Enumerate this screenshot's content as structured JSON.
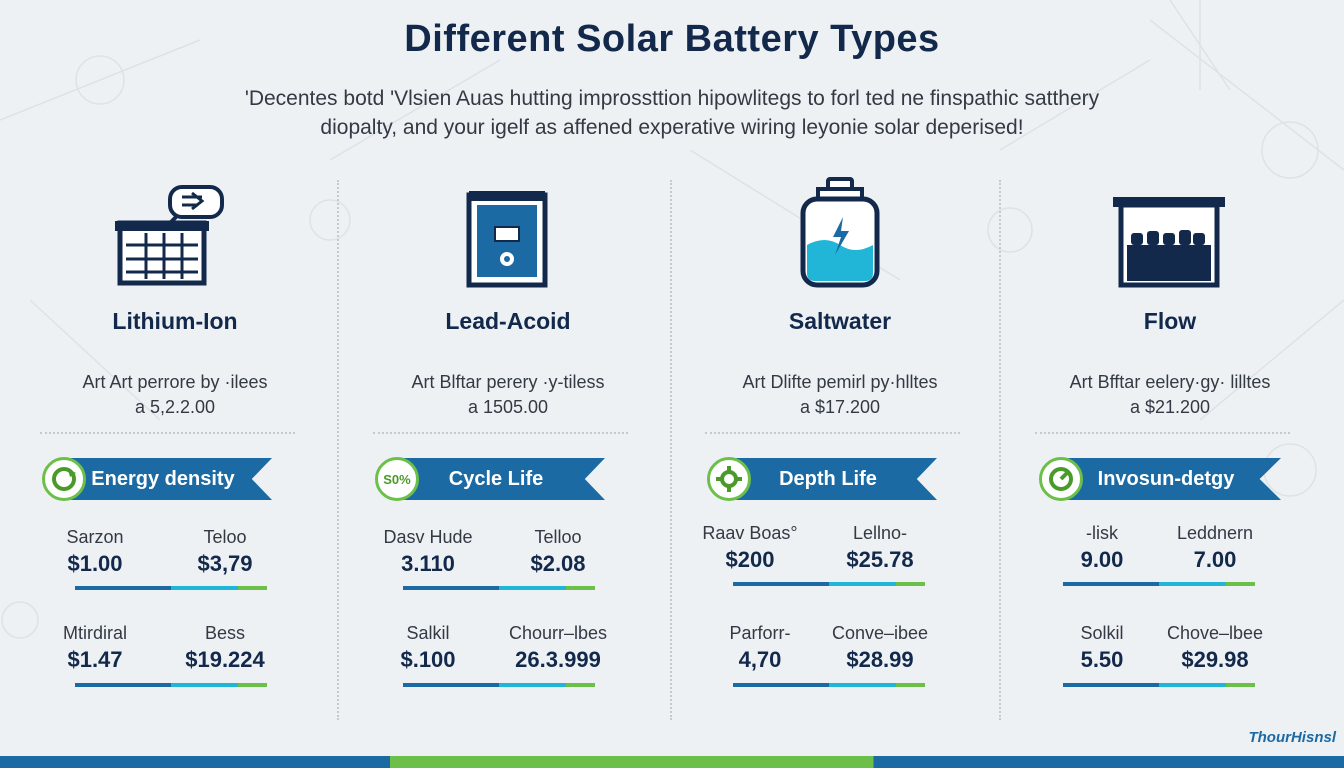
{
  "title": "Different Solar Battery Types",
  "subtitle_line1": "'Decentes botd 'Vlsien Auas hutting improssttion hipowlitegs to forl ted ne finspathic satthery",
  "subtitle_line2": "diopalty, and your igelf as affened experative wiring leyonie solar deperised!",
  "brand": "ThourHisnsl",
  "colors": {
    "navy": "#13294b",
    "blue": "#1c6aa3",
    "cyan": "#21b5d8",
    "green": "#6cc04a"
  },
  "columns": [
    {
      "icon": "lithium-battery-icon",
      "name": "Lithium-Ion",
      "desc1": "Art Art perrore by ·ilees",
      "desc2": "a 5,2.2.00",
      "ribbon_label": "Energy density",
      "ribbon_badge": "",
      "stats": [
        {
          "label": "Sarzon",
          "value": "$1.00"
        },
        {
          "label": "Teloo",
          "value": "$3,79"
        },
        {
          "label": "Mtirdiral",
          "value": "$1.47"
        },
        {
          "label": "Bess",
          "value": "$19.224"
        }
      ]
    },
    {
      "icon": "lead-acid-battery-icon",
      "name": "Lead-Acoid",
      "desc1": "Art Blftar perery ·y-tiless",
      "desc2": "a 1505.00",
      "ribbon_label": "Cycle Life",
      "ribbon_badge": "S0%",
      "stats": [
        {
          "label": "Dasv Hude",
          "value": "3.110"
        },
        {
          "label": "Telloo",
          "value": "$2.08"
        },
        {
          "label": "Salkil",
          "value": "$.100"
        },
        {
          "label": "Chourr–lbes",
          "value": "26.3.999"
        }
      ]
    },
    {
      "icon": "saltwater-battery-icon",
      "name": "Saltwater",
      "desc1": "Art Dlifte pemirl py·hlltes",
      "desc2": "a $17.200",
      "ribbon_label": "Depth Life",
      "ribbon_badge": "",
      "stats": [
        {
          "label": "Raav Boas°",
          "value": "$200"
        },
        {
          "label": "Lellno-",
          "value": "$25.78"
        },
        {
          "label": "Parforr-",
          "value": "4,70"
        },
        {
          "label": "Conve–ibee",
          "value": "$28.99"
        }
      ]
    },
    {
      "icon": "flow-battery-icon",
      "name": "Flow",
      "desc1": "Art Bfftar eelery·gy· lilltes",
      "desc2": "a $21.200",
      "ribbon_label": "Invosun-detgy",
      "ribbon_badge": "",
      "stats": [
        {
          "label": "-lisk",
          "value": "9.00"
        },
        {
          "label": "Leddnern",
          "value": "7.00"
        },
        {
          "label": "Solkil",
          "value": "5.50"
        },
        {
          "label": "Chove–lbee",
          "value": "$29.98"
        }
      ]
    }
  ]
}
